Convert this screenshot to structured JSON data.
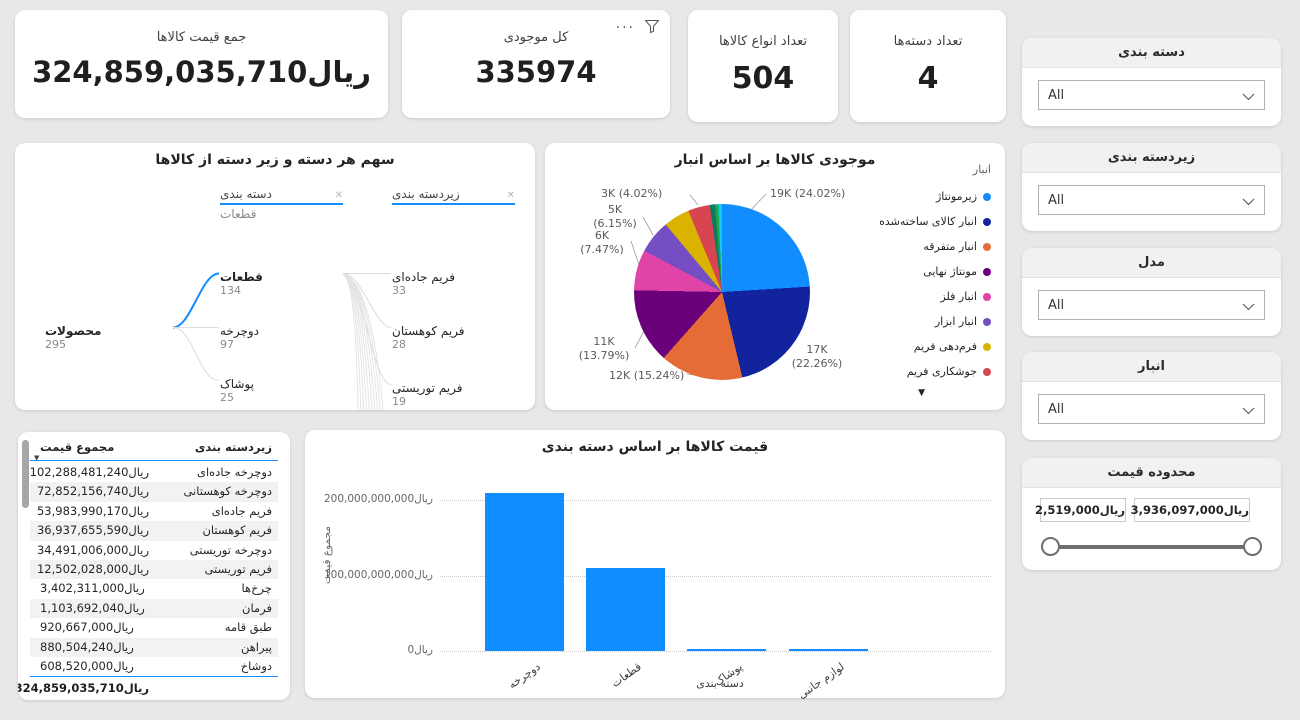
{
  "accent_color": "#118DFF",
  "kpi_cards": [
    {
      "title": "جمع قیمت کالاها",
      "value": "ریال324,859,035,710"
    },
    {
      "title": "کل موجودی",
      "value": "335974"
    },
    {
      "title": "تعداد انواع کالاها",
      "value": "504"
    },
    {
      "title": "تعداد دسته‌ها",
      "value": "4"
    }
  ],
  "slicers": [
    {
      "title": "دسته بندی",
      "value": "All"
    },
    {
      "title": "زیردسته بندی",
      "value": "All"
    },
    {
      "title": "مدل",
      "value": "All"
    },
    {
      "title": "انبار",
      "value": "All"
    }
  ],
  "price_slicer": {
    "title": "محدوده قیمت",
    "min_value": "ریال2,519,000",
    "max_value": "ریال3,936,097,000"
  },
  "chart_data": [
    {
      "type": "tree",
      "title": "سهم هر دسته و زیر دسته از کالاها",
      "level_headers": [
        {
          "label": "دسته بندی"
        },
        {
          "label": "زیردسته بندی"
        }
      ],
      "breadcrumb": "قطعات",
      "root": {
        "label": "محصولات",
        "value": "295"
      },
      "children": [
        {
          "label": "قطعات",
          "value": "134",
          "fill": 1,
          "selected": true
        },
        {
          "label": "دوچرخه",
          "value": "97",
          "fill": 0.73,
          "selected": false
        },
        {
          "label": "پوشاک",
          "value": "25",
          "fill": 0.26,
          "selected": false
        }
      ],
      "grandchildren": [
        {
          "label": "فریم جاده‌ای",
          "value": "33",
          "fill": 1
        },
        {
          "label": "فریم کوهستان",
          "value": "28",
          "fill": 0.85
        },
        {
          "label": "فریم توریستی",
          "value": "19",
          "fill": 0.55
        }
      ]
    },
    {
      "type": "pie",
      "title": "موجودی کالاها بر اساس انبار",
      "legend_title": "انبار",
      "legend_position": "right",
      "more_indicator": "▼",
      "slices": [
        {
          "label": "زیرمونتاژ",
          "color": "#118DFF",
          "pct": 24.02,
          "callout": "19K (24.02%)"
        },
        {
          "label": "انبار کالای ساخته‌شده",
          "color": "#12239E",
          "pct": 22.26,
          "callout": "17K (22.26%)"
        },
        {
          "label": "انبار متفرقه",
          "color": "#E66C37",
          "pct": 15.24,
          "callout": "12K (15.24%)"
        },
        {
          "label": "مونتاژ نهایی",
          "color": "#6B007B",
          "pct": 13.79,
          "callout": "11K (13.79%)"
        },
        {
          "label": "انبار فلز",
          "color": "#E044A7",
          "pct": 7.47,
          "callout": "6K (7.47%)"
        },
        {
          "label": "انبار ابزار",
          "color": "#744EC2",
          "pct": 6.15,
          "callout": "5K (6.15%)"
        },
        {
          "label": "فرم‌دهی فریم",
          "color": "#D9B300",
          "pct": 4.81,
          "callout": ""
        },
        {
          "label": "جوشکاری فریم",
          "color": "#D64550",
          "pct": 4.02,
          "callout": "3K (4.02%)"
        },
        {
          "label": "",
          "color": "#117865",
          "pct": 0.95,
          "callout": ""
        },
        {
          "label": "",
          "color": "#1AAB40",
          "pct": 0.6,
          "callout": ""
        },
        {
          "label": "",
          "color": "#15C6F4",
          "pct": 0.69,
          "callout": ""
        }
      ]
    },
    {
      "type": "table",
      "columns": [
        "زیردسته بندی",
        "مجموع قیمت"
      ],
      "rows": [
        {
          "label": "دوچرخه جاده‌ای",
          "value": "ریال102,288,481,240"
        },
        {
          "label": "دوچرخه کوهستانی",
          "value": "ریال72,852,156,740"
        },
        {
          "label": "فریم جاده‌ای",
          "value": "ریال53,983,990,170"
        },
        {
          "label": "فریم کوهستان",
          "value": "ریال36,937,655,590"
        },
        {
          "label": "دوچرخه توریستی",
          "value": "ریال34,491,006,000"
        },
        {
          "label": "فریم توریستی",
          "value": "ریال12,502,028,000"
        },
        {
          "label": "چرخ‌ها",
          "value": "ریال3,402,311,000"
        },
        {
          "label": "فرمان",
          "value": "ریال1,103,692,040"
        },
        {
          "label": "طبق قامه",
          "value": "ریال920,667,000"
        },
        {
          "label": "پیراهن",
          "value": "ریال880,504,240"
        },
        {
          "label": "دوشاخ",
          "value": "ریال608,520,000"
        }
      ],
      "total_value": "ریال324,859,035,710"
    },
    {
      "type": "bar",
      "title": "قیمت کالاها بر اساس دسته بندی",
      "xlabel": "دسته بندی",
      "ylabel": "مجموع قیمت",
      "categories": [
        "دوچرخه",
        "قطعات",
        "پوشاک",
        "لوازم جانبی"
      ],
      "values": [
        209631643980,
        109458863800,
        3200000000,
        2568000000
      ],
      "yticks": [
        {
          "label": "ریال0",
          "value": 0
        },
        {
          "label": "ریال100,000,000,000",
          "value": 100000000000
        },
        {
          "label": "ریال200,000,000,000",
          "value": 200000000000
        }
      ],
      "ylim": [
        0,
        232000000000
      ],
      "bar_color": "#118DFF",
      "grid": "dotted"
    }
  ]
}
